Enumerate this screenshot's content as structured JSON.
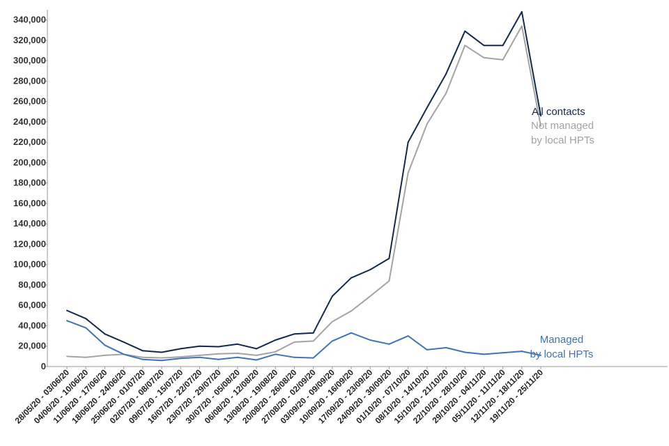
{
  "chart_data": {
    "type": "line",
    "title": "",
    "xlabel": "",
    "ylabel": "",
    "ylim": [
      0,
      350000
    ],
    "yticks": [
      0,
      20000,
      40000,
      60000,
      80000,
      100000,
      120000,
      140000,
      160000,
      180000,
      200000,
      220000,
      240000,
      260000,
      280000,
      300000,
      320000,
      340000
    ],
    "ytick_labels": [
      "0",
      "20,000",
      "40,000",
      "60,000",
      "80,000",
      "100,000",
      "120,000",
      "140,000",
      "160,000",
      "180,000",
      "200,000",
      "220,000",
      "240,000",
      "260,000",
      "280,000",
      "300,000",
      "320,000",
      "340,000"
    ],
    "grid": false,
    "categories": [
      "28/05/20 - 03/06/20",
      "04/06/20 - 10/06/20",
      "11/06/20 - 17/06/20",
      "18/06/20 - 24/06/20",
      "25/06/20 - 01/07/20",
      "02/07/20 - 08/07/20",
      "09/07/20 - 15/07/20",
      "16/07/20 - 22/07/20",
      "23/07/20 - 29/07/20",
      "30/07/20 - 05/08/20",
      "06/08/20 - 12/08/20",
      "13/08/20 - 19/08/20",
      "20/08/20 - 26/08/20",
      "27/08/20 - 02/09/20",
      "03/09/20 - 09/09/20",
      "10/09/20 - 16/09/20",
      "17/09/20 - 23/09/20",
      "24/09/20 - 30/09/20",
      "01/10/20 - 07/10/20",
      "08/10/20 - 14/10/20",
      "15/10/20 - 21/10/20",
      "22/10/20 - 28/10/20",
      "29/10/20 - 04/11/20",
      "05/11/20 - 11/11/20",
      "12/11/20 - 18/11/20",
      "19/11/20 - 25/11/20"
    ],
    "series": [
      {
        "name": "All contacts",
        "label_lines": [
          "All contacts"
        ],
        "color": "#12294f",
        "values": [
          55000,
          47000,
          32000,
          24000,
          15500,
          14000,
          17500,
          20000,
          19500,
          22000,
          17500,
          26000,
          32000,
          33000,
          69000,
          87000,
          95000,
          106000,
          220000,
          254000,
          287000,
          329000,
          315000,
          315000,
          348000,
          246000
        ]
      },
      {
        "name": "Not managed by local HPTs",
        "label_lines": [
          "Not managed",
          "by local HPTs"
        ],
        "color": "#a3a3a3",
        "values": [
          10000,
          9000,
          11000,
          12000,
          9000,
          8500,
          9500,
          11000,
          12500,
          13000,
          11000,
          14500,
          24000,
          25000,
          44000,
          54500,
          69000,
          84000,
          190000,
          238000,
          268000,
          315000,
          303000,
          301000,
          334000,
          236000
        ]
      },
      {
        "name": "Managed by local HPTs",
        "label_lines": [
          "Managed",
          "by local HPTs"
        ],
        "color": "#3e73b8",
        "values": [
          45000,
          38000,
          21000,
          12000,
          7000,
          6000,
          8000,
          9000,
          7000,
          9000,
          6500,
          12000,
          9000,
          8500,
          25000,
          33000,
          26000,
          22000,
          30000,
          16500,
          18500,
          14000,
          12000,
          13500,
          15000,
          11000
        ]
      }
    ]
  }
}
